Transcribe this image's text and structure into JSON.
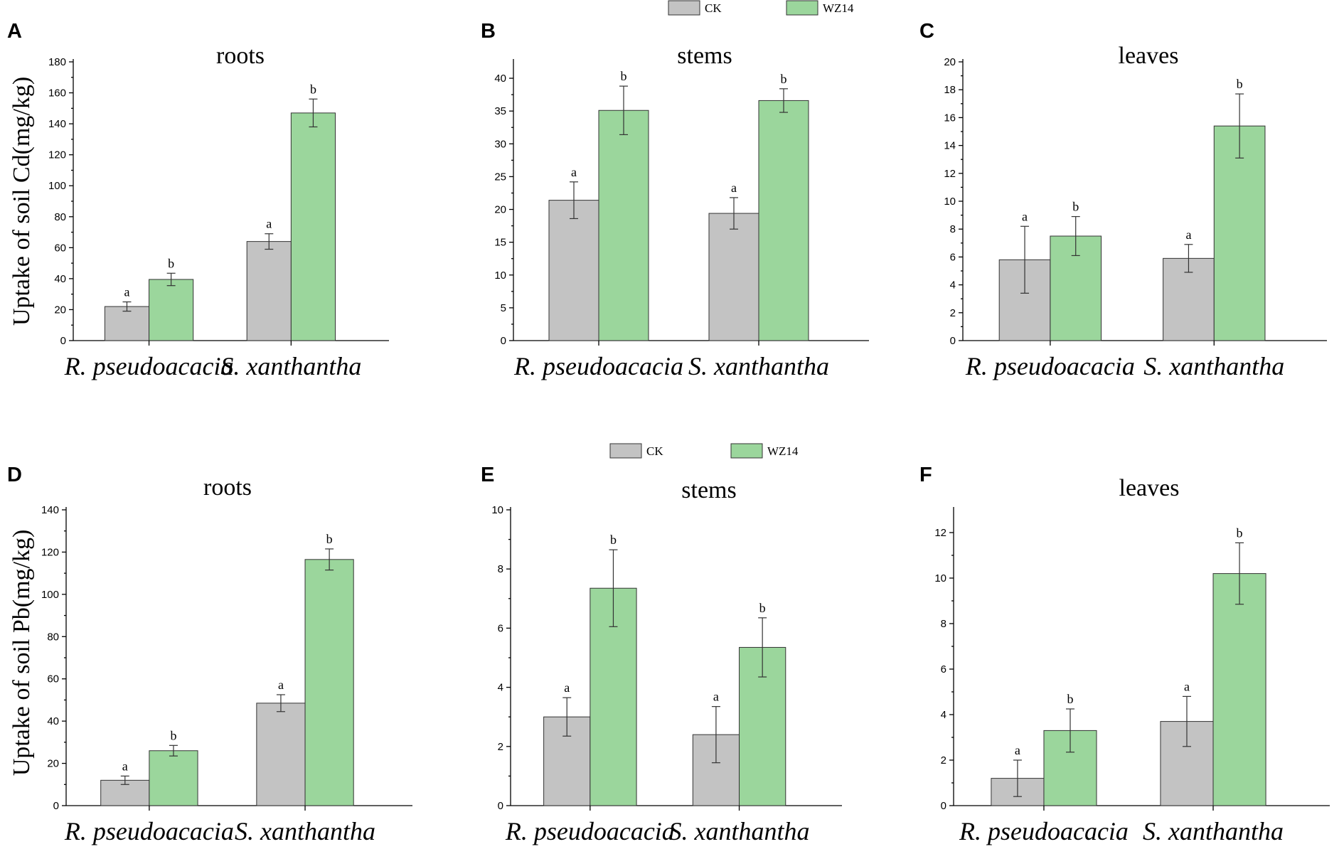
{
  "colors": {
    "ck": "#c3c3c3",
    "wz14": "#9bd69c",
    "bar_stroke": "#333333"
  },
  "legend": {
    "items": [
      "CK",
      "WZ14"
    ]
  },
  "ylabels": {
    "cd": "Uptake of soil Cd(mg/kg)",
    "pb": "Uptake of soil Pb(mg/kg)"
  },
  "chart_data": [
    {
      "panel": "A",
      "type": "bar",
      "title": "roots",
      "categories": [
        "R. pseudoacacia",
        "S. xanthantha"
      ],
      "ylim": [
        0,
        180
      ],
      "yticks": [
        0,
        20,
        40,
        60,
        80,
        100,
        120,
        140,
        160,
        180
      ],
      "series": [
        {
          "name": "CK",
          "values": [
            22,
            64
          ],
          "errors": [
            3,
            5
          ],
          "labels": [
            "a",
            "a"
          ]
        },
        {
          "name": "WZ14",
          "values": [
            39.5,
            147
          ],
          "errors": [
            4,
            9
          ],
          "labels": [
            "b",
            "b"
          ]
        }
      ]
    },
    {
      "panel": "B",
      "type": "bar",
      "title": "stems",
      "categories": [
        "R. pseudoacacia",
        "S. xanthantha"
      ],
      "ylim": [
        0,
        42.5
      ],
      "yticks": [
        0,
        5,
        10,
        15,
        20,
        25,
        30,
        35,
        40
      ],
      "series": [
        {
          "name": "CK",
          "values": [
            21.4,
            19.4
          ],
          "errors": [
            2.8,
            2.4
          ],
          "labels": [
            "a",
            "a"
          ]
        },
        {
          "name": "WZ14",
          "values": [
            35.1,
            36.6
          ],
          "errors": [
            3.7,
            1.8
          ],
          "labels": [
            "b",
            "b"
          ]
        }
      ]
    },
    {
      "panel": "C",
      "type": "bar",
      "title": "leaves",
      "categories": [
        "R. pseudoacacia",
        "S. xanthantha"
      ],
      "ylim": [
        0,
        20
      ],
      "yticks": [
        0,
        2,
        4,
        6,
        8,
        10,
        12,
        14,
        16,
        18,
        20
      ],
      "series": [
        {
          "name": "CK",
          "values": [
            5.8,
            5.9
          ],
          "errors": [
            2.4,
            1.0
          ],
          "labels": [
            "a",
            "a"
          ]
        },
        {
          "name": "WZ14",
          "values": [
            7.5,
            15.4
          ],
          "errors": [
            1.4,
            2.3
          ],
          "labels": [
            "b",
            "b"
          ]
        }
      ]
    },
    {
      "panel": "D",
      "type": "bar",
      "title": "roots",
      "categories": [
        "R. pseudoacacia",
        "S. xanthantha"
      ],
      "ylim": [
        0,
        140
      ],
      "yticks": [
        0,
        20,
        40,
        60,
        80,
        100,
        120,
        140
      ],
      "series": [
        {
          "name": "CK",
          "values": [
            12,
            48.5
          ],
          "errors": [
            2,
            4
          ],
          "labels": [
            "a",
            "a"
          ]
        },
        {
          "name": "WZ14",
          "values": [
            26,
            116.5
          ],
          "errors": [
            2.5,
            5
          ],
          "labels": [
            "b",
            "b"
          ]
        }
      ]
    },
    {
      "panel": "E",
      "type": "bar",
      "title": "stems",
      "categories": [
        "R. pseudoacacia",
        "S. xanthantha"
      ],
      "ylim": [
        0,
        10
      ],
      "yticks": [
        0,
        2,
        4,
        6,
        8,
        10
      ],
      "series": [
        {
          "name": "CK",
          "values": [
            3.0,
            2.4
          ],
          "errors": [
            0.65,
            0.95
          ],
          "labels": [
            "a",
            "a"
          ]
        },
        {
          "name": "WZ14",
          "values": [
            7.35,
            5.35
          ],
          "errors": [
            1.3,
            1.0
          ],
          "labels": [
            "b",
            "b"
          ]
        }
      ]
    },
    {
      "panel": "F",
      "type": "bar",
      "title": "leaves",
      "categories": [
        "R. pseudoacacia",
        "S. xanthantha"
      ],
      "ylim": [
        0,
        13
      ],
      "yticks": [
        0,
        2,
        4,
        6,
        8,
        10,
        12
      ],
      "series": [
        {
          "name": "CK",
          "values": [
            1.2,
            3.7
          ],
          "errors": [
            0.8,
            1.1
          ],
          "labels": [
            "a",
            "a"
          ]
        },
        {
          "name": "WZ14",
          "values": [
            3.3,
            10.2
          ],
          "errors": [
            0.95,
            1.35
          ],
          "labels": [
            "b",
            "b"
          ]
        }
      ]
    }
  ]
}
